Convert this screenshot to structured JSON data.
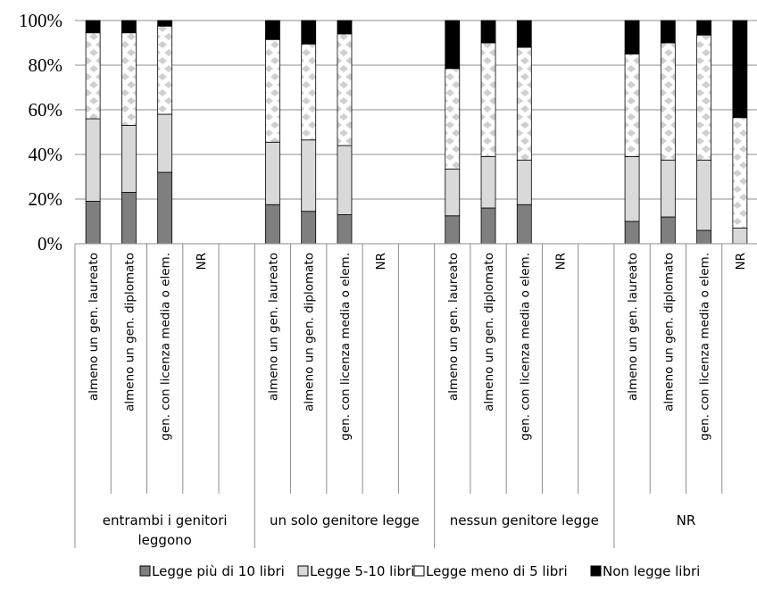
{
  "chart_data": {
    "type": "bar",
    "stacked": true,
    "normalized": true,
    "y_ticks": [
      "0%",
      "20%",
      "40%",
      "60%",
      "80%",
      "100%"
    ],
    "ylim": [
      0,
      100
    ],
    "grid": true,
    "legend_position": "bottom",
    "groups": [
      {
        "label": "entrambi i genitori leggono",
        "label_lines": [
          "entrambi i genitori",
          "leggono"
        ]
      },
      {
        "label": "un solo genitore legge",
        "label_lines": [
          "un solo genitore legge"
        ]
      },
      {
        "label": "nessun genitore legge",
        "label_lines": [
          "nessun genitore legge"
        ]
      },
      {
        "label": "NR",
        "label_lines": [
          "NR"
        ]
      }
    ],
    "categories": [
      {
        "group": 0,
        "label": "almeno un gen. laureato"
      },
      {
        "group": 0,
        "label": "almeno un gen. diplomato"
      },
      {
        "group": 0,
        "label": "gen. con licenza media o elem."
      },
      {
        "group": 0,
        "label": "NR"
      },
      {
        "group": 0,
        "label": ""
      },
      {
        "group": 1,
        "label": "almeno un gen. laureato"
      },
      {
        "group": 1,
        "label": "almeno un gen. diplomato"
      },
      {
        "group": 1,
        "label": "gen. con licenza media o elem."
      },
      {
        "group": 1,
        "label": "NR"
      },
      {
        "group": 1,
        "label": ""
      },
      {
        "group": 2,
        "label": "almeno un gen. laureato"
      },
      {
        "group": 2,
        "label": "almeno un gen. diplomato"
      },
      {
        "group": 2,
        "label": "gen. con licenza media o elem."
      },
      {
        "group": 2,
        "label": "NR"
      },
      {
        "group": 2,
        "label": ""
      },
      {
        "group": 3,
        "label": "almeno un gen. laureato"
      },
      {
        "group": 3,
        "label": "almeno un gen. diplomato"
      },
      {
        "group": 3,
        "label": "gen. con licenza media o elem."
      },
      {
        "group": 3,
        "label": "NR"
      }
    ],
    "series": [
      {
        "name": "Legge più di 10 libri",
        "color": "#7f7f7f",
        "pattern": "solid",
        "values": [
          19,
          23,
          32,
          0,
          0,
          17.5,
          14.5,
          13,
          0,
          0,
          12.5,
          16,
          17.5,
          0,
          0,
          10,
          12,
          6,
          0
        ]
      },
      {
        "name": "Legge 5-10 libri",
        "color": "#d9d9d9",
        "pattern": "solid",
        "values": [
          37,
          30,
          26,
          0,
          0,
          28,
          32,
          31,
          0,
          0,
          21,
          23,
          20,
          0,
          0,
          29,
          25.5,
          31.5,
          7
        ]
      },
      {
        "name": "Legge meno di 5 libri",
        "color": "#ffffff",
        "pattern": "dotted-diamond",
        "values": [
          38.5,
          41.5,
          39.5,
          0,
          0,
          46,
          43,
          50,
          0,
          0,
          45,
          51,
          50.5,
          0,
          0,
          46,
          52.5,
          56,
          49.5
        ]
      },
      {
        "name": "Non legge libri",
        "color": "#000000",
        "pattern": "solid",
        "values": [
          5.5,
          5.5,
          2.5,
          0,
          0,
          8.5,
          10.5,
          6,
          0,
          0,
          21.5,
          10,
          12,
          0,
          0,
          15,
          10,
          6.5,
          43.5
        ]
      }
    ]
  }
}
